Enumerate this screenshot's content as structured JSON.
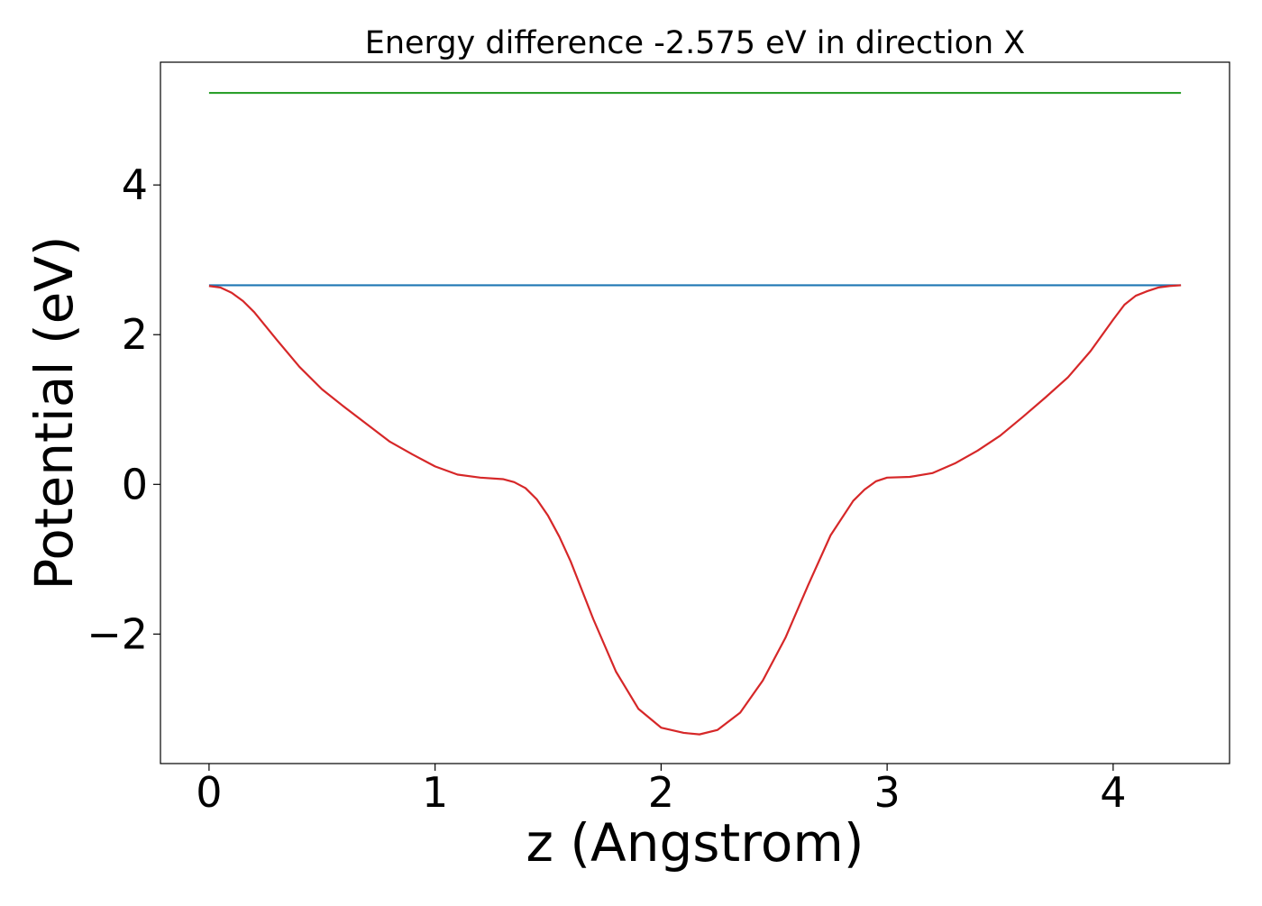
{
  "chart_data": {
    "type": "line",
    "title": "Energy difference -2.575 eV in direction X",
    "xlabel": "z (Angstrom)",
    "ylabel": "Potential (eV)",
    "xlim": [
      -0.215,
      4.515
    ],
    "ylim": [
      -3.73,
      5.64
    ],
    "xticks": [
      0,
      1,
      2,
      3,
      4
    ],
    "xtick_labels": [
      "0",
      "1",
      "2",
      "3",
      "4"
    ],
    "yticks": [
      -2,
      0,
      2,
      4
    ],
    "ytick_labels": [
      "−2",
      "0",
      "2",
      "4"
    ],
    "grid": false,
    "series": [
      {
        "color": "#2ca02c",
        "x": [
          0,
          4.3
        ],
        "y": [
          5.23,
          5.23
        ]
      },
      {
        "color": "#1f77b4",
        "x": [
          0,
          4.3
        ],
        "y": [
          2.66,
          2.66
        ]
      },
      {
        "color": "#d62728",
        "x": [
          0,
          0.05,
          0.1,
          0.15,
          0.2,
          0.3,
          0.4,
          0.5,
          0.6,
          0.7,
          0.8,
          0.9,
          1.0,
          1.1,
          1.2,
          1.3,
          1.35,
          1.4,
          1.45,
          1.5,
          1.55,
          1.6,
          1.7,
          1.8,
          1.9,
          2.0,
          2.1,
          2.17,
          2.25,
          2.35,
          2.45,
          2.55,
          2.65,
          2.75,
          2.85,
          2.9,
          2.95,
          3.0,
          3.1,
          3.2,
          3.3,
          3.4,
          3.5,
          3.6,
          3.7,
          3.8,
          3.9,
          4.0,
          4.05,
          4.1,
          4.15,
          4.2,
          4.25,
          4.3
        ],
        "y": [
          2.65,
          2.63,
          2.56,
          2.45,
          2.3,
          1.93,
          1.57,
          1.27,
          1.03,
          0.8,
          0.57,
          0.4,
          0.24,
          0.13,
          0.09,
          0.07,
          0.03,
          -0.05,
          -0.2,
          -0.42,
          -0.7,
          -1.03,
          -1.8,
          -2.5,
          -3.0,
          -3.25,
          -3.32,
          -3.34,
          -3.28,
          -3.05,
          -2.62,
          -2.05,
          -1.35,
          -0.68,
          -0.22,
          -0.07,
          0.04,
          0.09,
          0.1,
          0.15,
          0.28,
          0.45,
          0.65,
          0.9,
          1.16,
          1.43,
          1.78,
          2.2,
          2.4,
          2.52,
          2.58,
          2.63,
          2.65,
          2.66
        ]
      }
    ]
  }
}
